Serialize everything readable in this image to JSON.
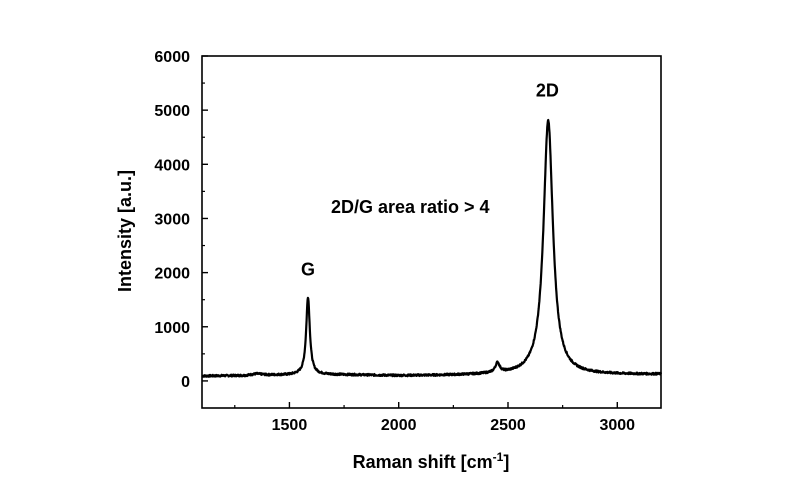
{
  "chart_data": {
    "type": "line",
    "title": "",
    "xlabel": "Raman shift [cm",
    "xlabel_sup": "-1",
    "xlabel_close": "]",
    "ylabel": "Intensity [a.u.]",
    "xlim": [
      1100,
      3200
    ],
    "ylim": [
      -500,
      6000
    ],
    "x_ticks": [
      1500,
      2000,
      2500,
      3000
    ],
    "x_tick_labels": [
      "1500",
      "2000",
      "2500",
      "3000"
    ],
    "y_ticks": [
      0,
      1000,
      2000,
      3000,
      4000,
      5000,
      6000
    ],
    "y_tick_labels": [
      "0",
      "1000",
      "2000",
      "3000",
      "4000",
      "5000",
      "6000"
    ],
    "grid": false,
    "legend": "none",
    "line_color": "#000000",
    "annotations": [
      {
        "text": "G",
        "x": 1585,
        "y": 1950
      },
      {
        "text": "2D",
        "x": 2680,
        "y": 5250
      },
      {
        "text": "2D/G area ratio > 4",
        "x": 1690,
        "y": 3100
      }
    ],
    "series": [
      {
        "baseline": [
          [
            1100,
            90
          ],
          [
            1300,
            100
          ],
          [
            1350,
            130
          ],
          [
            1400,
            110
          ],
          [
            1500,
            110
          ],
          [
            1560,
            120
          ],
          [
            1800,
            110
          ],
          [
            2000,
            95
          ],
          [
            2200,
            100
          ],
          [
            2400,
            110
          ],
          [
            2750,
            110
          ],
          [
            3000,
            115
          ],
          [
            3200,
            120
          ]
        ],
        "peaks": [
          {
            "center": 1585,
            "height": 1430,
            "width": 10
          },
          {
            "center": 2452,
            "height": 180,
            "width": 12
          },
          {
            "center": 2684,
            "height": 4700,
            "width": 26
          }
        ]
      }
    ]
  }
}
